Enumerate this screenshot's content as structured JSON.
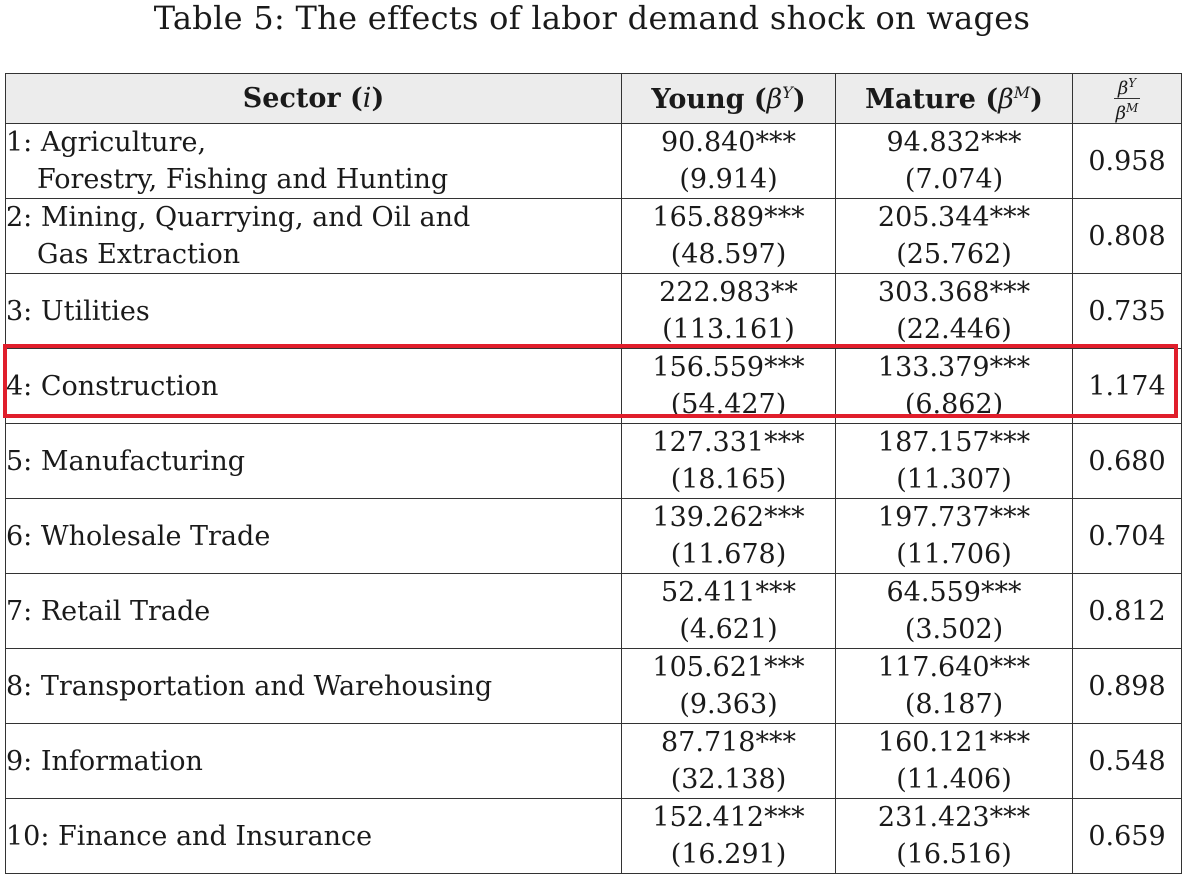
{
  "caption": "Table 5: The effects of labor demand shock on wages",
  "header": {
    "sector_label": "Sector",
    "sector_var": "i",
    "young_label": "Young",
    "young_symbol": "β",
    "young_sup": "Y",
    "mature_label": "Mature",
    "mature_symbol": "β",
    "mature_sup": "M",
    "ratio_num_symbol": "β",
    "ratio_num_sup": "Y",
    "ratio_den_symbol": "β",
    "ratio_den_sup": "M"
  },
  "rows": [
    {
      "line1": "1: Agriculture,",
      "line2": "Forestry, Fishing and Hunting",
      "young": "90.840***",
      "young_se": "(9.914)",
      "mature": "94.832***",
      "mature_se": "(7.074)",
      "ratio": "0.958"
    },
    {
      "line1": "2: Mining, Quarrying, and Oil and",
      "line2": "Gas Extraction",
      "young": "165.889***",
      "young_se": "(48.597)",
      "mature": "205.344***",
      "mature_se": "(25.762)",
      "ratio": "0.808"
    },
    {
      "line1": "3: Utilities",
      "line2": "",
      "young": "222.983**",
      "young_se": "(113.161)",
      "mature": "303.368***",
      "mature_se": "(22.446)",
      "ratio": "0.735"
    },
    {
      "line1": "4: Construction",
      "line2": "",
      "young": "156.559***",
      "young_se": "(54.427)",
      "mature": "133.379***",
      "mature_se": "(6.862)",
      "ratio": "1.174"
    },
    {
      "line1": "5: Manufacturing",
      "line2": "",
      "young": "127.331***",
      "young_se": "(18.165)",
      "mature": "187.157***",
      "mature_se": "(11.307)",
      "ratio": "0.680"
    },
    {
      "line1": "6: Wholesale Trade",
      "line2": "",
      "young": "139.262***",
      "young_se": "(11.678)",
      "mature": "197.737***",
      "mature_se": "(11.706)",
      "ratio": "0.704"
    },
    {
      "line1": "7: Retail Trade",
      "line2": "",
      "young": "52.411***",
      "young_se": "(4.621)",
      "mature": "64.559***",
      "mature_se": "(3.502)",
      "ratio": "0.812"
    },
    {
      "line1": "8: Transportation and Warehousing",
      "line2": "",
      "young": "105.621***",
      "young_se": "(9.363)",
      "mature": "117.640***",
      "mature_se": "(8.187)",
      "ratio": "0.898"
    },
    {
      "line1": "9: Information",
      "line2": "",
      "young": "87.718***",
      "young_se": "(32.138)",
      "mature": "160.121***",
      "mature_se": "(11.406)",
      "ratio": "0.548"
    },
    {
      "line1": "10: Finance and Insurance",
      "line2": "",
      "young": "152.412***",
      "young_se": "(16.291)",
      "mature": "231.423***",
      "mature_se": "(16.516)",
      "ratio": "0.659"
    }
  ],
  "highlight": {
    "row": 4,
    "color": "#e01e2b"
  }
}
